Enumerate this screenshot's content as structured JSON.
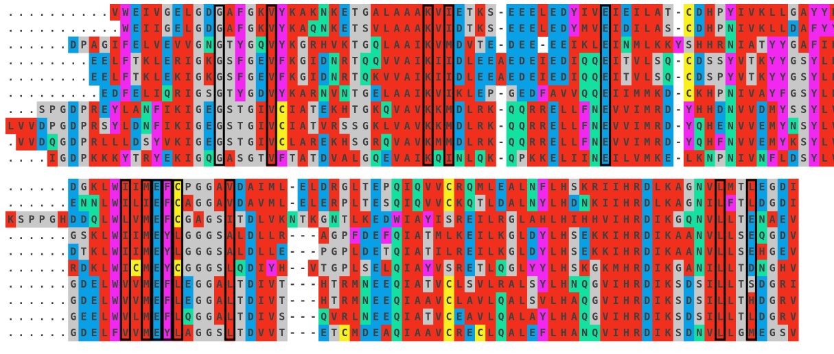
{
  "blocks": [
    {
      "rows": [
        "..........VWEIVGELGDGAFGKVYKAKNKETGALAAAKVIETKS-EEELEDYIVEIEILAT-CDHPYIVKLLGAYYH",
        "...........WEIIGELGDGAFGKVYKAQNKETSVLAAAKVIDTKS-EEELEDYMVEIDILAS-CDHPNIVKLLDAFYY",
        "......DPAGIFELVEVVGNGTYGQVYKGRHVKTGQLAAIKVMDVTE-DEE-EEIKLEINMLKKYSHHRNIATYYGAFIK",
        "........EELFTKLERIGKGSFGEVFKGIDNRTQQVVAIKIIDLEEAEDEIEDIQQEITVLSQ-CDSSYVTKYYGSYLK",
        "........EELFTKLEKIGKGSFGEVFKGIDNRTQKVVAIKIIDLEEAEDEIEDIQQEITVLSQ-CDSPYVTKYYGSYLK",
        ".........EDFELIQRIGSGTYGDVYKARNVNTGELAAIKVIKLEP-GEDFAVVQQEIIMMKD-CKHPNIVAYFGSYLR",
        "...SPGDPREYLANFIKIGEGSTGIVCIATEKHTGKQVAVKKMDLRK-QQRRELLFNEVVIMRD-YHHDNVVDMYSSYLV",
        "LVVDPGDPRSYLDNFIKIGEGSTGIVCIATVRSSGKLVAVKKMDLRK-QQRRELLFNEVVIMRD-YQHENVVEMYNSYLV",
        ".VVDQGDPRLLLDSYVKIGEGSTGIVCLAREKHSGRQVAVKMMDLRK-QQRRELLFNEVVIMRD-YQHFNVVEMYKSYLV",
        "....IGDPKKKYTRYEKIGQGASGTVFTATDVALGQEVAIKQINLQK-QPKKELIINEILVMKE-LKNPNIVNFLDSYLV"
      ]
    },
    {
      "rows": [
        "......DGKLWIIMEFCPGGAVDAIML-ELDRGLTEPQIQVVCRQMLEALNFLHSKRIIHRDLKAGNVLMTLEGDI",
        "......ENNLWILIEFCAGGAVDAVML-ELERPLTESQIQVVCKQTLDALNYLHDNKIIHRDLKAGNILFTLDGDI",
        "KSPPGHDDQLWLVMEFCGAGSITDLVKNTKGNTLKEDWIAYISREILRGLAHLHIHHVIHRDIKGQNVLLTENAEV",
        "......GSKLWIIMEYLGGGSALDLLR---AGPFDEFQIATMLKEILKGLDYLHSEKKIHRDIKAANVLLSEQGDV",
        "......DTKLWIIMEYLGGGSALDLLE---PGPLDETQIATILREILKGLDYLHSEKKIHRDIKAANVLLSEHGEV",
        "......RDKLWICMEYCGGGSLQDIYH--VTGPLSELQIAYVSRETLQGLYYLHSKGKMHRDIKGANILLTDNGHV",
        "......GDELWVVMEFLEGGALTDIVT---HTRMNEEQIATVCLSVLRALSYLHNQGVIHRDIKSDSILLTSDGRI",
        "......GDELWVVMEFLEGGALTDIVT---HTRMNEEQIAAVCLAVLQALSVLHAQGVIHRDIKSDSILLTHDGRV",
        "......GEELWVLMEFLQGGALTDIVS---QVRLNEEQIATVCEAVLQALAYLHAQGVIHRDIKSDSILLTLDGRV",
        "......GDELFVVMEYLAGGSLTDVVT---ETCMDEAQIAAVCRECLQALEFLHANQVIHRDIKSDNVLLGMEGSV"
      ]
    }
  ],
  "palette": {
    "hydrophobic": "#f0301c",
    "negative": "#0aa0e6",
    "positive": "#f0301c",
    "polar": "#14e0a0",
    "aromatic": "#f028f0",
    "glycine": "#c8c8c8",
    "cysteine": "#f8f020",
    "gap": "#ffffff",
    "text_dark": "#404040",
    "box": "#000000"
  }
}
